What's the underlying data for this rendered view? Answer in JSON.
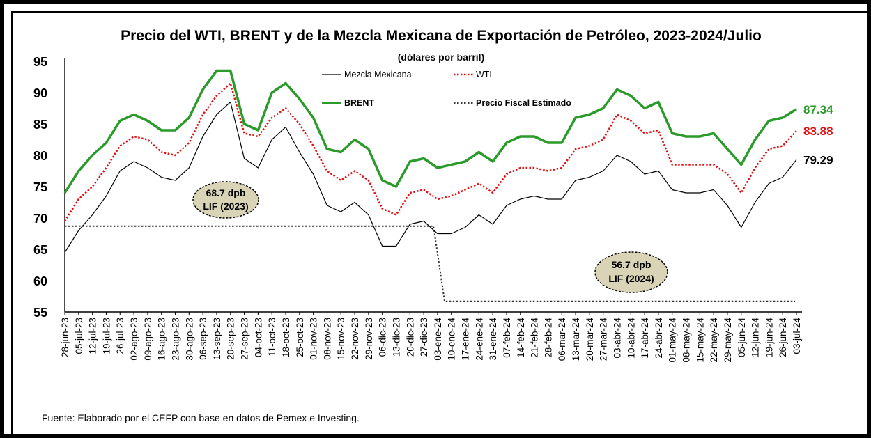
{
  "chart_data": {
    "type": "line",
    "title": "Precio del WTI, BRENT y de la Mezcla Mexicana de Exportación de Petróleo, 2023-2024/Julio",
    "subtitle": "(dólares por barril)",
    "source": "Fuente: Elaborado por el CEFP con base en datos de Pemex e Investing.",
    "ylim": [
      55,
      95
    ],
    "yticks": [
      "95",
      "90",
      "85",
      "80",
      "75",
      "70",
      "65",
      "60",
      "55"
    ],
    "x_tick_labels": [
      "28-jun-23",
      "05-jul-23",
      "12-jul-23",
      "19-jul-23",
      "26-jul-23",
      "02-ago-23",
      "09-ago-23",
      "16-ago-23",
      "23-ago-23",
      "30-ago-23",
      "06-sep-23",
      "13-sep-23",
      "20-sep-23",
      "27-sep-23",
      "04-oct-23",
      "11-oct-23",
      "18-oct-23",
      "25-oct-23",
      "01-nov-23",
      "08-nov-23",
      "15-nov-23",
      "22-nov-23",
      "29-nov-23",
      "06-dic-23",
      "13-dic-23",
      "20-dic-23",
      "27-dic-23",
      "03-ene-24",
      "10-ene-24",
      "17-ene-24",
      "24-ene-24",
      "31-ene-24",
      "07-feb-24",
      "14-feb-24",
      "21-feb-24",
      "28-feb-24",
      "06-mar-24",
      "13-mar-24",
      "20-mar-24",
      "27-mar-24",
      "03-abr-24",
      "10-abr-24",
      "17-abr-24",
      "24-abr-24",
      "01-may-24",
      "08-may-24",
      "15-may-24",
      "22-may-24",
      "29-may-24",
      "05-jun-24",
      "12-jun-24",
      "19-jun-24",
      "26-jun-24",
      "03-jul-24"
    ],
    "series": [
      {
        "name": "BRENT",
        "color": "#2a9a2a",
        "style": "solid-thick",
        "values": [
          74,
          77.5,
          80,
          82,
          85.5,
          86.5,
          85.5,
          84,
          84,
          86,
          90.5,
          93.5,
          93.5,
          85,
          84,
          90,
          91.5,
          89,
          86,
          81,
          80.5,
          82.5,
          81,
          76,
          75,
          79,
          79.5,
          78,
          78.5,
          79,
          80.5,
          79,
          82,
          83,
          83,
          82,
          82,
          86,
          86.5,
          87.5,
          90.5,
          89.5,
          87.5,
          88.5,
          83.5,
          83,
          83,
          83.5,
          81,
          78.5,
          82.5,
          85.5,
          86,
          87.34
        ]
      },
      {
        "name": "WTI",
        "color": "#e01010",
        "style": "dotted",
        "values": [
          69.5,
          73,
          75,
          78,
          81.5,
          83,
          82.5,
          80.5,
          80,
          82,
          86.5,
          89.5,
          91.5,
          83.5,
          83,
          86,
          87.5,
          85,
          81.5,
          77.5,
          76,
          77.5,
          76,
          71.5,
          70.5,
          74,
          74.5,
          73,
          73.5,
          74.5,
          75.5,
          74,
          77,
          78,
          78,
          77.5,
          78,
          81,
          81.5,
          82.5,
          86.5,
          85.5,
          83.5,
          84,
          78.5,
          78.5,
          78.5,
          78.5,
          77,
          74,
          78,
          81,
          81.5,
          83.88
        ]
      },
      {
        "name": "Mezcla Mexicana",
        "color": "#000000",
        "style": "solid-thin",
        "values": [
          64.5,
          68,
          70.5,
          73.5,
          77.5,
          79,
          78,
          76.5,
          76,
          78,
          83,
          86.5,
          88.5,
          79.5,
          78,
          82.5,
          84.5,
          80.5,
          77,
          72,
          71,
          72.5,
          70.5,
          65.5,
          65.5,
          69,
          69.5,
          67.5,
          67.5,
          68.5,
          70.5,
          69,
          72,
          73,
          73.5,
          73,
          73,
          76,
          76.5,
          77.5,
          80,
          79,
          77,
          77.5,
          74.5,
          74,
          74,
          74.5,
          72,
          68.5,
          72.5,
          75.5,
          76.5,
          79.29
        ]
      },
      {
        "name": "Precio Fiscal Estimado",
        "color": "#333333",
        "style": "dotted-step",
        "segments": [
          {
            "from": "28-jun-23",
            "to": "27-dic-23",
            "value": 68.7
          },
          {
            "from": "03-ene-24",
            "to": "03-jul-24",
            "value": 56.7
          }
        ]
      }
    ],
    "end_labels": {
      "brent": "87.34",
      "wti": "83.88",
      "mezcla": "79.29"
    },
    "annotations": {
      "lif_2023": [
        "68.7 dpb",
        "LIF (2023)"
      ],
      "lif_2024": [
        "56.7 dpb",
        "LIF (2024)"
      ]
    },
    "legend_position": "top-center, inside plot",
    "grid": false
  }
}
